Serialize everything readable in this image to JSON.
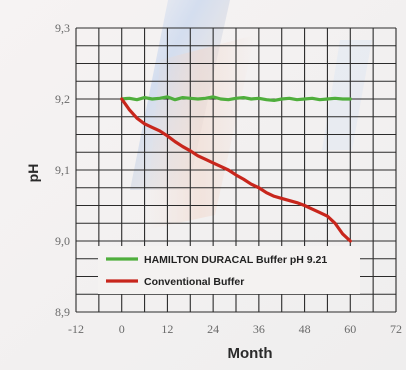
{
  "chart_data": {
    "type": "line",
    "xlabel": "Month",
    "ylabel": "pH",
    "xlim": [
      -12,
      72
    ],
    "ylim": [
      8.9,
      9.3
    ],
    "x_ticks": [
      "-12",
      "0",
      "12",
      "24",
      "36",
      "48",
      "60",
      "72"
    ],
    "y_ticks": [
      "8,9",
      "9,0",
      "9,1",
      "9,2",
      "9,3"
    ],
    "grid": true,
    "legend_position": "bottom-center",
    "series": [
      {
        "name": "HAMILTON DURACAL Buffer pH 9.21",
        "color": "#4fae3c",
        "x": [
          0,
          2,
          4,
          6,
          8,
          10,
          12,
          14,
          16,
          18,
          20,
          22,
          24,
          26,
          28,
          30,
          32,
          34,
          36,
          38,
          40,
          42,
          44,
          46,
          48,
          50,
          52,
          54,
          56,
          58,
          60
        ],
        "y": [
          9.2,
          9.201,
          9.199,
          9.202,
          9.2,
          9.201,
          9.203,
          9.199,
          9.202,
          9.201,
          9.2,
          9.201,
          9.203,
          9.2,
          9.199,
          9.201,
          9.202,
          9.2,
          9.201,
          9.199,
          9.198,
          9.2,
          9.201,
          9.199,
          9.2,
          9.201,
          9.199,
          9.2,
          9.201,
          9.2,
          9.2
        ]
      },
      {
        "name": "Conventional Buffer",
        "color": "#c8261c",
        "x": [
          0,
          2,
          4,
          6,
          8,
          10,
          12,
          14,
          16,
          18,
          20,
          22,
          24,
          26,
          28,
          30,
          32,
          34,
          36,
          38,
          40,
          42,
          44,
          46,
          48,
          50,
          52,
          54,
          56,
          58,
          60
        ],
        "y": [
          9.2,
          9.185,
          9.173,
          9.165,
          9.16,
          9.155,
          9.148,
          9.14,
          9.133,
          9.127,
          9.12,
          9.115,
          9.11,
          9.105,
          9.1,
          9.093,
          9.087,
          9.08,
          9.075,
          9.068,
          9.063,
          9.06,
          9.057,
          9.054,
          9.05,
          9.045,
          9.04,
          9.035,
          9.025,
          9.01,
          9.0
        ]
      }
    ]
  }
}
